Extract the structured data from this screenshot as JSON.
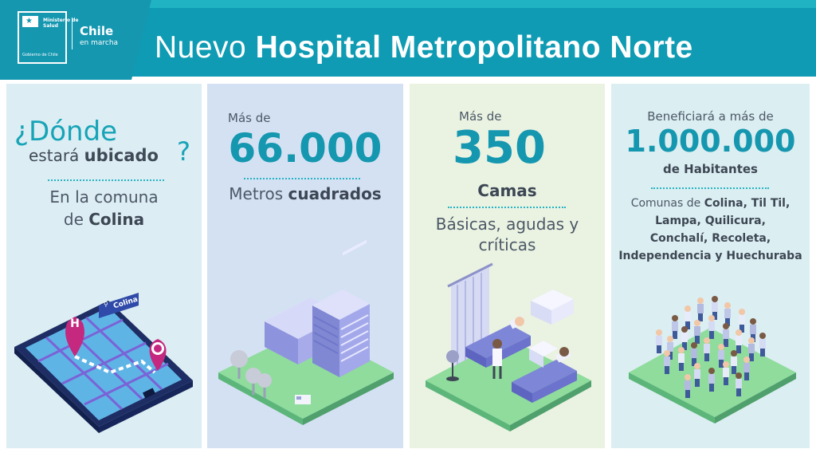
{
  "header": {
    "logo": {
      "ministry_line1": "Ministerio de",
      "ministry_line2": "Salud",
      "government": "Gobierno de Chile",
      "brand": "Chile",
      "brand_sub": "en marcha"
    },
    "title_light": "Nuevo",
    "title_bold": "Hospital Metropolitano Norte"
  },
  "panels": {
    "location": {
      "question_part1": "¿Dónde",
      "question_part2": "estará",
      "question_bold": "ubicado",
      "question_end": "?",
      "answer_line1": "En la comuna",
      "answer_line2_prefix": "de",
      "answer_line2_bold": "Colina",
      "map_tag": "Colina",
      "map_marker": "H",
      "map_tag_icon": "location-pin-icon",
      "map_destination_icon": "clock-pin-icon"
    },
    "area": {
      "prefix": "Más de",
      "value": "66.000",
      "label_light": "Metros",
      "label_bold": "cuadrados"
    },
    "beds": {
      "prefix": "Más de",
      "value": "350",
      "label_bold": "Camas",
      "detail_line1": "Básicas, agudas y",
      "detail_line2": "críticas"
    },
    "population": {
      "prefix": "Beneficiará a más de",
      "value": "1.000.000",
      "label_bold": "de Habitantes",
      "communes_line1_prefix": "Comunas de",
      "communes_line1_bold": "Colina, Til Til,",
      "communes_line2": "Lampa, Quilicura,",
      "communes_line3": "Conchalí, Recoleta,",
      "communes_line4": "Independencia y Huechuraba"
    }
  },
  "colors": {
    "brand_teal": "#0f9bb3",
    "accent_cyan": "#16a4b6",
    "marker_magenta": "#c4287f",
    "panel1": "#dcedf4",
    "panel2": "#d4e1f3",
    "panel3": "#eaf2e2",
    "panel4": "#dbeef1"
  }
}
